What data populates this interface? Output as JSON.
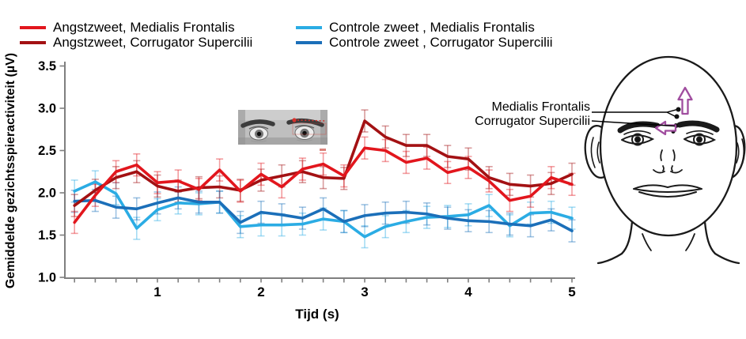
{
  "anatomy": {
    "labels": [
      "Medialis Frontalis",
      "Corrugator Supercilii"
    ],
    "arrow_color": "#a04d9f"
  },
  "chart_data": {
    "type": "line",
    "title": "",
    "xlabel": "Tijd (s)",
    "ylabel": "Gemiddelde gezichtsspieractiviteit (µV)",
    "xlim": [
      0.1,
      5.0
    ],
    "ylim": [
      1.0,
      3.5
    ],
    "xticks": [
      1,
      2,
      3,
      4,
      5
    ],
    "xtick_minor_step": 0.2,
    "yticks": [
      "1.0",
      "1.5",
      "2.0",
      "2.5",
      "3.0",
      "3.5"
    ],
    "grid": false,
    "legend_position": "top",
    "error_bar_halfwidth": 0.13,
    "x": [
      0.2,
      0.4,
      0.6,
      0.8,
      1.0,
      1.2,
      1.4,
      1.6,
      1.8,
      2.0,
      2.2,
      2.4,
      2.6,
      2.8,
      3.0,
      3.2,
      3.4,
      3.6,
      3.8,
      4.0,
      4.2,
      4.4,
      4.6,
      4.8,
      5.0
    ],
    "series": [
      {
        "name": "Angstzweet, Medialis Frontalis",
        "color": "#e2161d",
        "values": [
          1.65,
          1.97,
          2.25,
          2.33,
          2.12,
          2.14,
          2.04,
          2.27,
          2.02,
          2.22,
          2.07,
          2.28,
          2.34,
          2.2,
          2.53,
          2.5,
          2.36,
          2.41,
          2.24,
          2.3,
          2.14,
          1.91,
          1.96,
          2.18,
          2.1
        ]
      },
      {
        "name": "Angstzweet, Corrugator Supercilii",
        "color": "#a31113",
        "values": [
          1.85,
          2.03,
          2.18,
          2.25,
          2.08,
          2.02,
          2.06,
          2.07,
          2.03,
          2.15,
          2.2,
          2.25,
          2.18,
          2.17,
          2.85,
          2.66,
          2.56,
          2.56,
          2.43,
          2.4,
          2.18,
          2.1,
          2.08,
          2.11,
          2.22
        ]
      },
      {
        "name": "Controle zweet , Medialis Frontalis",
        "color": "#2bace4",
        "values": [
          2.02,
          2.13,
          1.99,
          1.58,
          1.8,
          1.88,
          1.87,
          1.89,
          1.6,
          1.62,
          1.62,
          1.63,
          1.69,
          1.66,
          1.48,
          1.6,
          1.66,
          1.71,
          1.72,
          1.74,
          1.85,
          1.61,
          1.76,
          1.77,
          1.7
        ]
      },
      {
        "name": "Controle zweet , Corrugator Supercilii",
        "color": "#1b6fb9",
        "values": [
          1.9,
          1.91,
          1.83,
          1.81,
          1.88,
          1.94,
          1.89,
          1.89,
          1.65,
          1.77,
          1.74,
          1.7,
          1.81,
          1.66,
          1.73,
          1.76,
          1.77,
          1.75,
          1.7,
          1.67,
          1.66,
          1.63,
          1.61,
          1.68,
          1.55
        ]
      }
    ]
  }
}
